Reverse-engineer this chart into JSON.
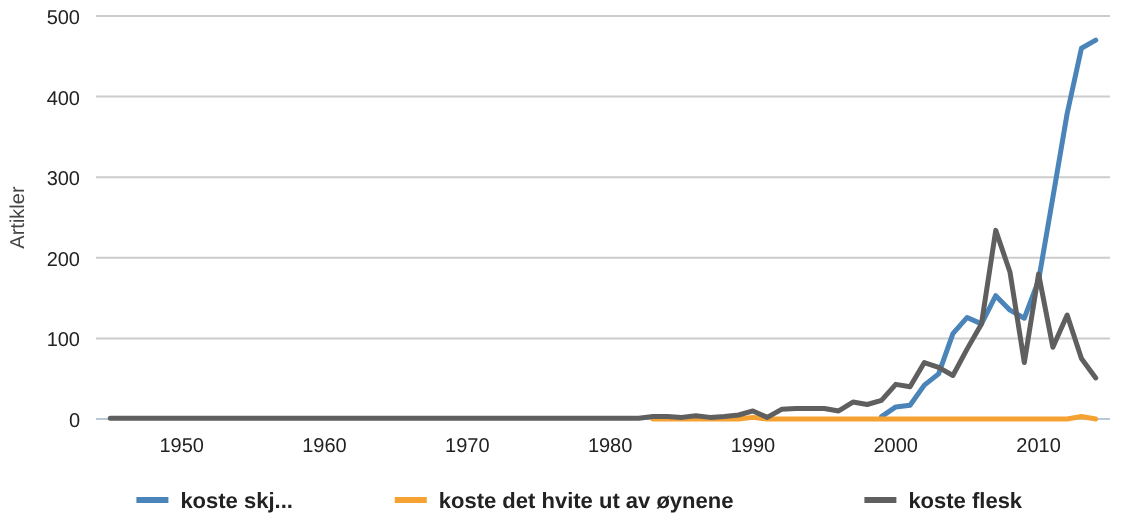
{
  "chart_data": {
    "type": "line",
    "ylabel": "Artikler",
    "x": [
      1945,
      1946,
      1947,
      1948,
      1949,
      1950,
      1951,
      1952,
      1953,
      1954,
      1955,
      1956,
      1957,
      1958,
      1959,
      1960,
      1961,
      1962,
      1963,
      1964,
      1965,
      1966,
      1967,
      1968,
      1969,
      1970,
      1971,
      1972,
      1973,
      1974,
      1975,
      1976,
      1977,
      1978,
      1979,
      1980,
      1981,
      1982,
      1983,
      1984,
      1985,
      1986,
      1987,
      1988,
      1989,
      1990,
      1991,
      1992,
      1993,
      1994,
      1995,
      1996,
      1997,
      1998,
      1999,
      2000,
      2001,
      2002,
      2003,
      2004,
      2005,
      2006,
      2007,
      2008,
      2009,
      2010,
      2011,
      2012,
      2013,
      2014
    ],
    "series": [
      {
        "name": "koste skj...",
        "color": "#4a84b8",
        "values": [
          null,
          null,
          null,
          null,
          null,
          null,
          null,
          null,
          null,
          null,
          null,
          null,
          null,
          null,
          null,
          null,
          null,
          null,
          null,
          null,
          null,
          null,
          null,
          null,
          null,
          null,
          null,
          null,
          null,
          null,
          null,
          null,
          null,
          null,
          null,
          null,
          null,
          null,
          null,
          null,
          null,
          null,
          null,
          null,
          null,
          null,
          null,
          null,
          null,
          null,
          null,
          null,
          null,
          null,
          3,
          15,
          17,
          42,
          56,
          106,
          126,
          118,
          153,
          135,
          125,
          172,
          275,
          379,
          460,
          470
        ]
      },
      {
        "name": "koste det hvite ut av øynene",
        "color": "#f5a233",
        "values": [
          null,
          null,
          null,
          null,
          null,
          null,
          null,
          null,
          null,
          null,
          null,
          null,
          null,
          null,
          null,
          null,
          null,
          null,
          null,
          null,
          null,
          null,
          null,
          null,
          null,
          null,
          null,
          null,
          null,
          null,
          null,
          null,
          null,
          null,
          null,
          null,
          null,
          null,
          0,
          0,
          0,
          0,
          0,
          0,
          0,
          2,
          0,
          0,
          0,
          0,
          0,
          0,
          0,
          0,
          0,
          0,
          0,
          0,
          0,
          0,
          0,
          0,
          0,
          0,
          0,
          0,
          0,
          0,
          3,
          0
        ]
      },
      {
        "name": "koste flesk",
        "color": "#5f5f5f",
        "values": [
          1,
          1,
          1,
          1,
          1,
          1,
          1,
          1,
          1,
          1,
          1,
          1,
          1,
          1,
          1,
          1,
          1,
          1,
          1,
          1,
          1,
          1,
          1,
          1,
          1,
          1,
          1,
          1,
          1,
          1,
          1,
          1,
          1,
          1,
          1,
          1,
          1,
          1,
          3,
          3,
          2,
          4,
          2,
          3,
          5,
          10,
          2,
          12,
          13,
          13,
          13,
          10,
          21,
          18,
          23,
          43,
          40,
          70,
          64,
          54,
          87,
          118,
          234,
          182,
          70,
          180,
          89,
          129,
          75,
          51
        ]
      }
    ],
    "xlim": [
      1944,
      2015
    ],
    "xticks": [
      1950,
      1960,
      1970,
      1980,
      1990,
      2000,
      2010
    ],
    "ylim": [
      0,
      500
    ],
    "yticks": [
      0,
      100,
      200,
      300,
      400,
      500
    ],
    "grid": "y",
    "legend": "bottom",
    "marker": "none",
    "line_style": "solid"
  }
}
